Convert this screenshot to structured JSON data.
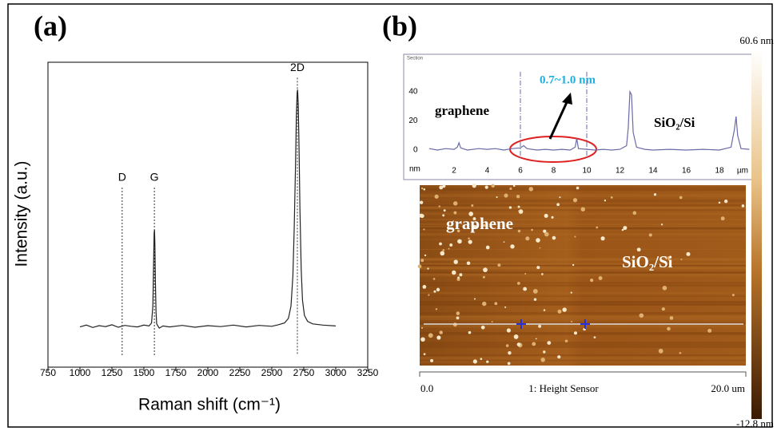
{
  "panel_labels": [
    "(a)",
    "(b)"
  ],
  "chart_data": [
    {
      "type": "line",
      "x_label": "Intensity (a.u.)",
      "y_label": "Intensity (a.u.)",
      "x_axis_label": "Raman shift (cm⁻¹)",
      "xlim": [
        750,
        3250
      ],
      "xticks": [
        750,
        1000,
        1250,
        1500,
        1750,
        2000,
        2250,
        2500,
        2750,
        3000,
        3250
      ],
      "ylim": [
        0,
        100
      ],
      "color": "#222222",
      "x": [
        1000,
        1050,
        1100,
        1150,
        1200,
        1250,
        1300,
        1350,
        1400,
        1450,
        1500,
        1540,
        1560,
        1570,
        1575,
        1580,
        1583,
        1586,
        1590,
        1595,
        1600,
        1620,
        1650,
        1700,
        1800,
        1900,
        2000,
        2100,
        2200,
        2300,
        2400,
        2500,
        2550,
        2600,
        2630,
        2650,
        2665,
        2675,
        2685,
        2692,
        2698,
        2702,
        2707,
        2713,
        2720,
        2730,
        2740,
        2755,
        2780,
        2820,
        2900,
        3000
      ],
      "values": [
        13.2,
        13.8,
        13.0,
        13.6,
        13.3,
        13.9,
        13.1,
        13.7,
        13.4,
        13.2,
        13.8,
        13.5,
        14.5,
        20,
        32,
        44,
        45,
        40,
        28,
        18,
        14.2,
        12.8,
        13.5,
        13.2,
        13.7,
        13.1,
        13.6,
        13.3,
        13.8,
        13.2,
        13.7,
        13.4,
        13.9,
        14.5,
        16,
        20,
        30,
        45,
        65,
        82,
        90,
        91,
        86,
        72,
        52,
        32,
        22,
        17,
        15,
        14.2,
        13.8,
        13.5
      ],
      "annotations": [
        {
          "label": "D",
          "x": 1330
        },
        {
          "label": "G",
          "x": 1582
        },
        {
          "label": "2D",
          "x": 2700
        }
      ]
    },
    {
      "type": "line",
      "title": "Section",
      "y_unit": "nm",
      "x_unit": "µm",
      "xlim": [
        0,
        20
      ],
      "xticks": [
        2,
        4,
        6,
        8,
        10,
        12,
        14,
        16,
        18
      ],
      "ylim": [
        -6,
        58
      ],
      "yticks": [
        0,
        20,
        40
      ],
      "color": "#6a6aa8",
      "cursors": [
        6,
        10
      ],
      "x": [
        0.5,
        1,
        1.5,
        2,
        2.2,
        2.3,
        2.4,
        2.8,
        3.5,
        4,
        4.5,
        5,
        5.5,
        6,
        6.2,
        6.4,
        7,
        7.5,
        8,
        8.5,
        9,
        9.3,
        9.4,
        9.5,
        10,
        10.5,
        11,
        11.5,
        12,
        12.4,
        12.5,
        12.6,
        12.7,
        12.8,
        13,
        13.5,
        14,
        15,
        16,
        17,
        18,
        18.7,
        18.9,
        19.0,
        19.1,
        19.3,
        19.8
      ],
      "values": [
        1,
        0,
        1,
        0.5,
        2,
        5,
        1.5,
        0,
        1,
        0.5,
        1,
        0,
        1,
        1.5,
        3,
        1,
        0,
        0.5,
        0,
        0.5,
        0,
        2,
        8,
        1,
        0.5,
        0,
        0.5,
        0,
        0.5,
        3,
        15,
        40,
        38,
        12,
        2,
        0.5,
        0,
        0.5,
        0,
        0.5,
        0,
        2,
        14,
        23,
        10,
        1,
        0.5
      ],
      "texts": {
        "step": "0.7~1.0 nm",
        "left": "graphene",
        "right": "SiO₂/Si"
      }
    }
  ],
  "afm_image": {
    "left": "graphene",
    "right": "SiO₂/Si",
    "scale_start": "0.0",
    "scale_name": "1: Height Sensor",
    "scale_end": "20.0 um"
  },
  "colorbar": {
    "max": "60.6 nm",
    "min": "-12.8 nm"
  }
}
